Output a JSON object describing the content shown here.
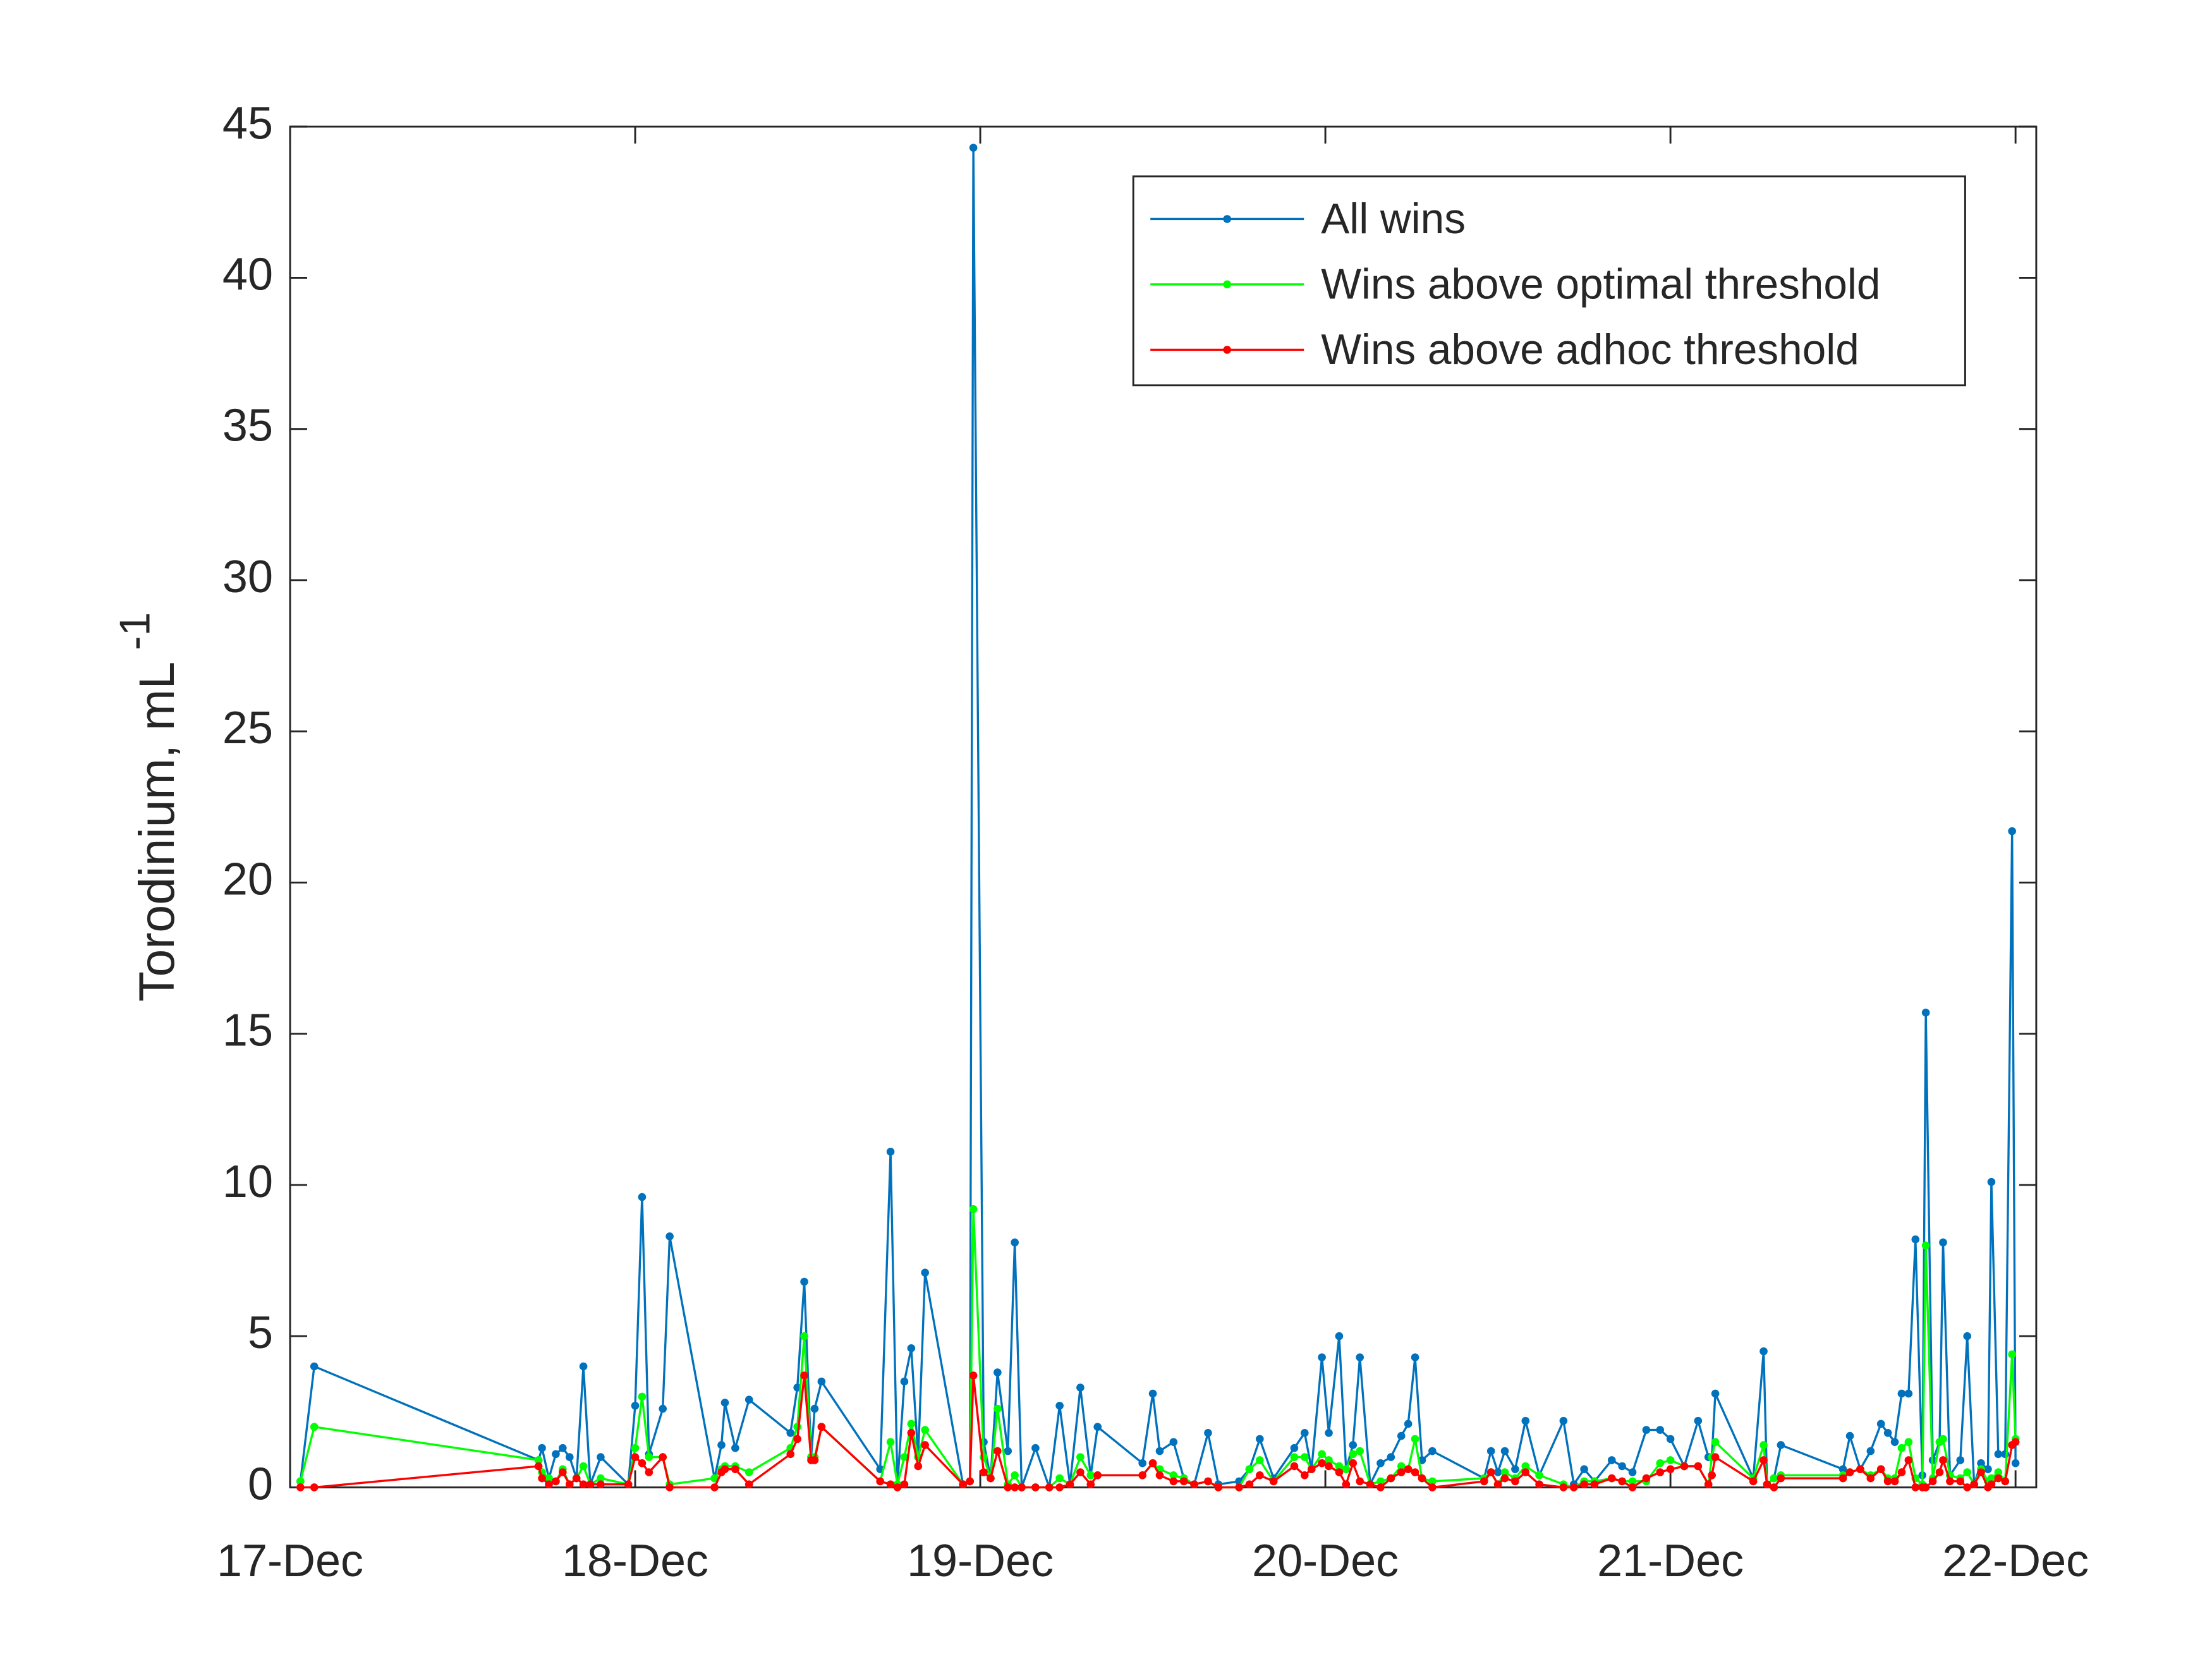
{
  "chart_data": {
    "type": "line",
    "ylabel": "Torodinium, mL",
    "ylabel_exponent": "-1",
    "xlim": [
      0,
      5.06
    ],
    "ylim": [
      0,
      45
    ],
    "xticks": [
      {
        "value": 0,
        "label": "17-Dec"
      },
      {
        "value": 1,
        "label": "18-Dec"
      },
      {
        "value": 2,
        "label": "19-Dec"
      },
      {
        "value": 3,
        "label": "20-Dec"
      },
      {
        "value": 4,
        "label": "21-Dec"
      },
      {
        "value": 5,
        "label": "22-Dec"
      }
    ],
    "yticks": [
      0,
      5,
      10,
      15,
      20,
      25,
      30,
      35,
      40,
      45
    ],
    "legend": "upper right",
    "x": [
      0.03,
      0.07,
      0.72,
      0.73,
      0.75,
      0.77,
      0.79,
      0.81,
      0.83,
      0.85,
      0.87,
      0.9,
      0.98,
      1.0,
      1.02,
      1.04,
      1.08,
      1.1,
      1.23,
      1.25,
      1.26,
      1.29,
      1.33,
      1.45,
      1.47,
      1.49,
      1.51,
      1.52,
      1.54,
      1.71,
      1.74,
      1.76,
      1.78,
      1.8,
      1.82,
      1.84,
      1.95,
      1.97,
      1.98,
      2.01,
      2.03,
      2.05,
      2.08,
      2.1,
      2.12,
      2.16,
      2.2,
      2.23,
      2.26,
      2.29,
      2.32,
      2.34,
      2.47,
      2.5,
      2.52,
      2.56,
      2.59,
      2.62,
      2.66,
      2.69,
      2.75,
      2.78,
      2.81,
      2.85,
      2.91,
      2.94,
      2.96,
      2.99,
      3.01,
      3.04,
      3.06,
      3.08,
      3.1,
      3.13,
      3.16,
      3.19,
      3.22,
      3.24,
      3.26,
      3.28,
      3.31,
      3.46,
      3.48,
      3.5,
      3.52,
      3.55,
      3.58,
      3.62,
      3.69,
      3.72,
      3.75,
      3.78,
      3.83,
      3.86,
      3.89,
      3.93,
      3.97,
      4.0,
      4.04,
      4.08,
      4.11,
      4.12,
      4.13,
      4.24,
      4.27,
      4.28,
      4.3,
      4.32,
      4.5,
      4.52,
      4.55,
      4.58,
      4.61,
      4.63,
      4.65,
      4.67,
      4.69,
      4.71,
      4.73,
      4.74,
      4.76,
      4.78,
      4.79,
      4.81,
      4.84,
      4.86,
      4.88,
      4.9,
      4.92,
      4.93,
      4.95,
      4.97,
      4.99,
      5.0
    ],
    "series": [
      {
        "name": "All wins",
        "color": "#0072bd",
        "values": [
          0.2,
          4.0,
          0.9,
          1.3,
          0.3,
          1.1,
          1.3,
          1.0,
          0.3,
          4.0,
          0.1,
          1.0,
          0.1,
          2.7,
          9.6,
          1.1,
          2.6,
          8.3,
          0.3,
          1.4,
          2.8,
          1.3,
          2.9,
          1.8,
          3.3,
          6.8,
          1.0,
          2.6,
          3.5,
          0.6,
          11.1,
          0.1,
          3.5,
          4.6,
          1.0,
          7.1,
          0.1,
          0.2,
          44.3,
          1.5,
          0.3,
          3.8,
          1.2,
          8.1,
          0,
          1.3,
          0,
          2.7,
          0.1,
          3.3,
          0.4,
          2.0,
          0.8,
          3.1,
          1.2,
          1.5,
          0.3,
          0.1,
          1.8,
          0.1,
          0.2,
          0.6,
          1.6,
          0.3,
          1.3,
          1.8,
          0.6,
          4.3,
          1.8,
          5.0,
          0.6,
          1.4,
          4.3,
          0.1,
          0.8,
          1.0,
          1.7,
          2.1,
          4.3,
          0.9,
          1.2,
          0.3,
          1.2,
          0.5,
          1.2,
          0.6,
          2.2,
          0.4,
          2.2,
          0.1,
          0.6,
          0.2,
          0.9,
          0.7,
          0.5,
          1.9,
          1.9,
          1.6,
          0.7,
          2.2,
          1.0,
          1.0,
          3.1,
          0.3,
          4.5,
          0.1,
          0.3,
          1.4,
          0.6,
          1.7,
          0.6,
          1.2,
          2.1,
          1.8,
          1.5,
          3.1,
          3.1,
          8.2,
          0.4,
          15.7,
          0.9,
          1.5,
          8.1,
          0.4,
          0.9,
          5.0,
          0.1,
          0.8,
          0.6,
          10.1,
          1.1,
          1.1,
          21.7,
          0.8
        ]
      },
      {
        "name": "Wins above optimal threshold",
        "color": "#00ff00",
        "values": [
          0.2,
          2.0,
          0.9,
          0.5,
          0.3,
          0.2,
          0.6,
          0.1,
          0.3,
          0.7,
          0.1,
          0.3,
          0.1,
          1.3,
          3.0,
          1.0,
          1.0,
          0.1,
          0.3,
          0.6,
          0.7,
          0.7,
          0.5,
          1.3,
          2.0,
          5.0,
          1.0,
          1.0,
          2.0,
          0.2,
          1.5,
          0.1,
          1.0,
          2.1,
          1.0,
          1.9,
          0.1,
          0.2,
          9.2,
          1.0,
          0.3,
          2.6,
          0.1,
          0.4,
          0,
          0,
          0,
          0.3,
          0.1,
          1.0,
          0.4,
          0.4,
          0.4,
          0.8,
          0.6,
          0.4,
          0.3,
          0.1,
          0.2,
          0,
          0,
          0.6,
          0.9,
          0.2,
          1.0,
          1.0,
          0.6,
          1.1,
          0.9,
          0.7,
          0.6,
          1.1,
          1.2,
          0.1,
          0.2,
          0.3,
          0.7,
          0.6,
          1.6,
          0.3,
          0.2,
          0.3,
          0.5,
          0.1,
          0.5,
          0.3,
          0.7,
          0.4,
          0.1,
          0,
          0.2,
          0.2,
          0.3,
          0.2,
          0.2,
          0.2,
          0.8,
          0.9,
          0.7,
          0.7,
          0.1,
          1.0,
          1.5,
          0.3,
          1.4,
          0.1,
          0.3,
          0.4,
          0.4,
          0.5,
          0.6,
          0.4,
          0.6,
          0.3,
          0.3,
          1.3,
          1.5,
          0.3,
          0.1,
          8.0,
          0.3,
          1.5,
          1.6,
          0.4,
          0.3,
          0.5,
          0.1,
          0.6,
          0.2,
          0.3,
          0.5,
          0.2,
          4.4,
          1.6
        ]
      },
      {
        "name": "Wins above adhoc threshold",
        "color": "#ff0000",
        "values": [
          0,
          0,
          0.7,
          0.3,
          0.1,
          0.2,
          0.5,
          0.1,
          0.3,
          0.1,
          0.1,
          0.1,
          0.1,
          1.0,
          0.8,
          0.5,
          1.0,
          0,
          0,
          0.5,
          0.6,
          0.6,
          0.1,
          1.1,
          1.6,
          3.7,
          0.9,
          0.9,
          2.0,
          0.2,
          0.1,
          0,
          0.1,
          1.8,
          0.7,
          1.4,
          0.1,
          0.2,
          3.7,
          0.5,
          0.3,
          1.2,
          0,
          0,
          0,
          0,
          0,
          0,
          0.1,
          0.5,
          0.1,
          0.4,
          0.4,
          0.8,
          0.4,
          0.2,
          0.2,
          0.1,
          0.2,
          0,
          0,
          0.1,
          0.4,
          0.2,
          0.7,
          0.4,
          0.6,
          0.8,
          0.7,
          0.5,
          0.1,
          0.8,
          0.2,
          0.1,
          0,
          0.3,
          0.5,
          0.6,
          0.5,
          0.3,
          0,
          0.2,
          0.5,
          0.1,
          0.3,
          0.2,
          0.5,
          0.1,
          0,
          0,
          0.1,
          0.1,
          0.3,
          0.2,
          0,
          0.3,
          0.5,
          0.6,
          0.7,
          0.7,
          0.1,
          0.4,
          1.0,
          0.2,
          0.9,
          0.1,
          0,
          0.3,
          0.3,
          0.5,
          0.6,
          0.3,
          0.6,
          0.2,
          0.2,
          0.5,
          0.9,
          0,
          0,
          0,
          0.2,
          0.5,
          0.9,
          0.2,
          0.2,
          0,
          0.1,
          0.5,
          0,
          0.1,
          0.3,
          0.2,
          1.4,
          1.5
        ]
      }
    ]
  }
}
